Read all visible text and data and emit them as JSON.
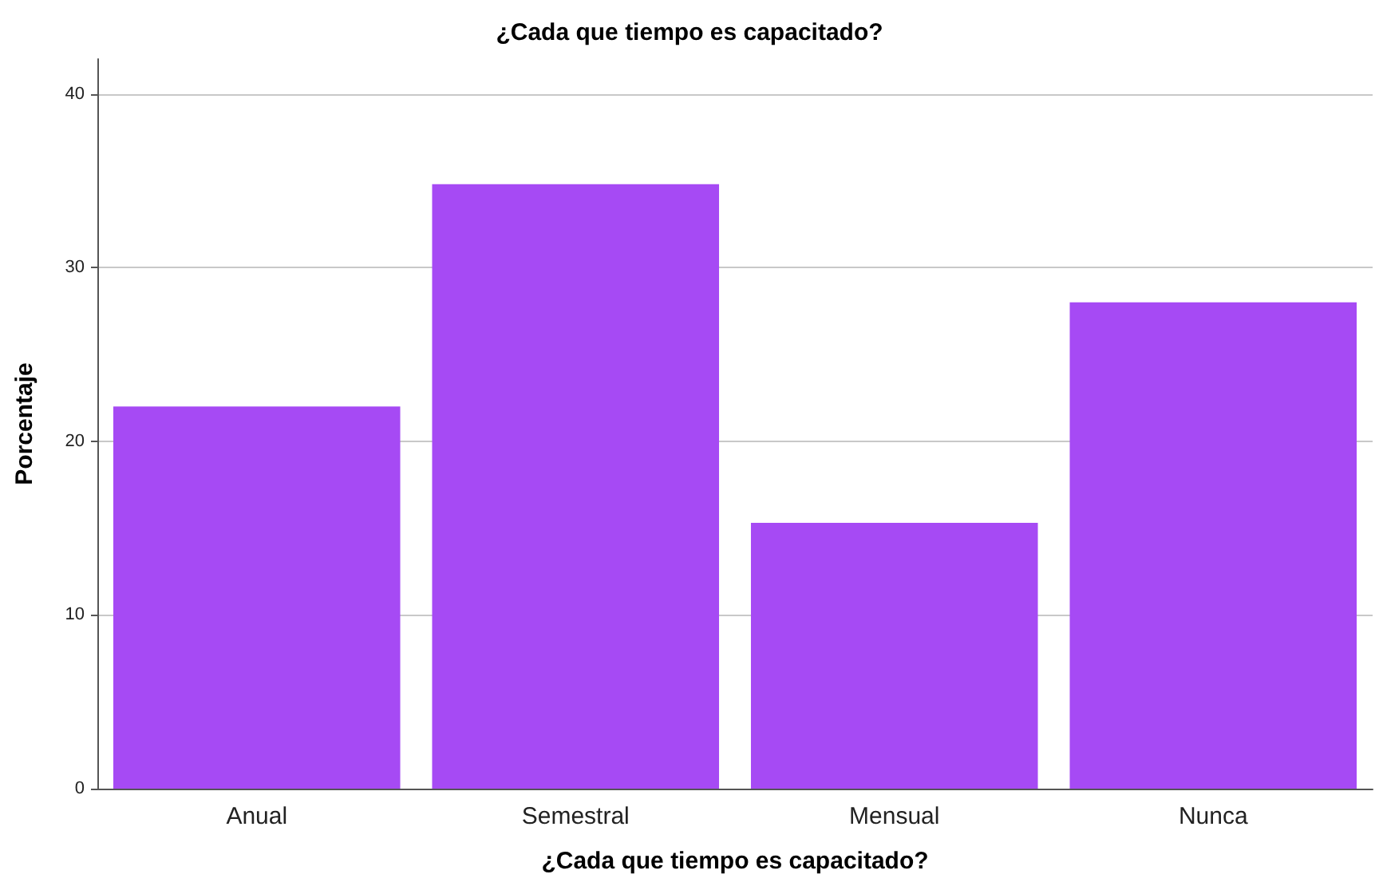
{
  "chart_data": {
    "type": "bar",
    "title": "¿Cada que tiempo es capacitado?",
    "xlabel": "¿Cada que tiempo es capacitado?",
    "ylabel": "Porcentaje",
    "categories": [
      "Anual",
      "Semestral",
      "Mensual",
      "Nunca"
    ],
    "values": [
      22.0,
      34.8,
      15.3,
      28.0
    ],
    "color": "#a64af4",
    "ylim": [
      0,
      42
    ],
    "yticks": [
      0,
      10,
      20,
      30,
      40
    ],
    "grid": "y"
  }
}
